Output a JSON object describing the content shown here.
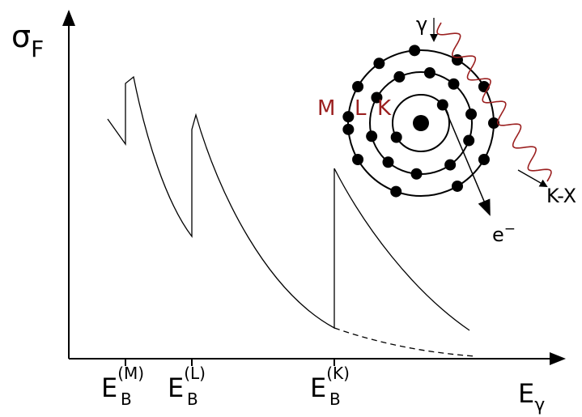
{
  "axes": {
    "y_label": {
      "base": "σ",
      "sub": "F"
    },
    "x_label": {
      "base": "E",
      "sub": "γ"
    }
  },
  "edges": [
    {
      "base": "E",
      "sub": "B",
      "sup": "(M)"
    },
    {
      "base": "E",
      "sub": "B",
      "sup": "(L)"
    },
    {
      "base": "E",
      "sub": "B",
      "sup": "(K)"
    }
  ],
  "atom": {
    "shells": [
      "M",
      "L",
      "K"
    ],
    "photon": "γ",
    "fluorescence": "K-X",
    "electron": {
      "base": "e",
      "sup": "−"
    }
  }
}
